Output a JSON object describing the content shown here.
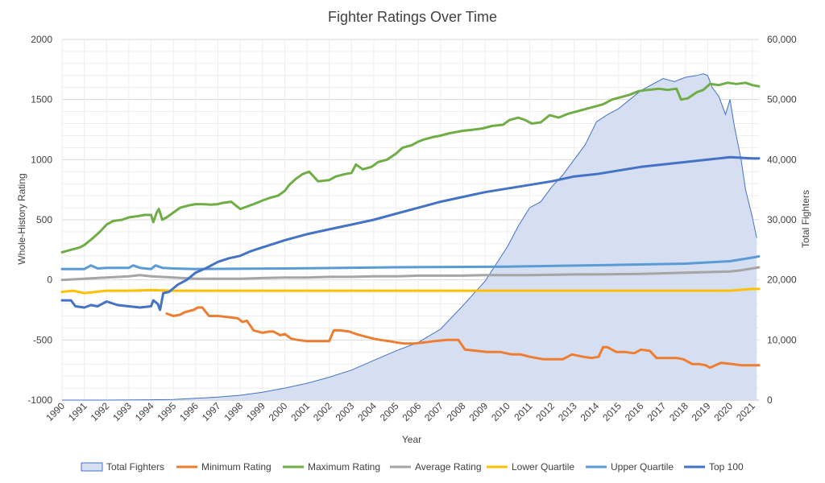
{
  "chart_data": {
    "type": "line",
    "title": "Fighter Ratings Over Time",
    "xlabel": "Year",
    "ylabel": "Whole-History Rating",
    "y2label": "Total Fighters",
    "xlim": [
      1990,
      2021.3
    ],
    "ylim": [
      -1000,
      2000
    ],
    "y2lim": [
      0,
      60000
    ],
    "grid": true,
    "legend_position": "bottom",
    "x_ticks": [
      "1990",
      "1991",
      "1992",
      "1993",
      "1994",
      "1995",
      "1996",
      "1997",
      "1998",
      "1999",
      "2000",
      "2001",
      "2002",
      "2003",
      "2004",
      "2005",
      "2006",
      "2007",
      "2008",
      "2009",
      "2010",
      "2011",
      "2012",
      "2013",
      "2014",
      "2015",
      "2016",
      "2017",
      "2018",
      "2019",
      "2020",
      "2021"
    ],
    "y_ticks": [
      "-1000",
      "-500",
      "0",
      "500",
      "1000",
      "1500",
      "2000"
    ],
    "y2_ticks": [
      "0",
      "10,000",
      "20,000",
      "30,000",
      "40,000",
      "50,000",
      "60,000"
    ],
    "series": [
      {
        "name": "Total Fighters",
        "kind": "area",
        "axis": "right",
        "color": "#4472C4",
        "fill": "#D6DEF1",
        "x": [
          1990,
          1992,
          1994,
          1995,
          1996,
          1997,
          1998,
          1999,
          2000,
          2001,
          2002,
          2003,
          2004,
          2005,
          2006,
          2007,
          2008,
          2009,
          2010,
          2010.5,
          2011,
          2011.5,
          2012,
          2012.5,
          2013,
          2013.5,
          2014,
          2014.5,
          2015,
          2015.5,
          2016,
          2016.5,
          2017,
          2017.5,
          2018,
          2018.5,
          2018.8,
          2019,
          2019.2,
          2019.5,
          2019.8,
          2020,
          2020.2,
          2020.5,
          2020.7,
          2021,
          2021.2
        ],
        "values": [
          0,
          0,
          50,
          100,
          300,
          500,
          800,
          1300,
          2000,
          2800,
          3800,
          5000,
          6600,
          8200,
          9600,
          11800,
          15700,
          19800,
          25500,
          29000,
          32000,
          33000,
          35500,
          37500,
          40000,
          42500,
          46300,
          47500,
          48500,
          50000,
          51500,
          52500,
          53500,
          53000,
          53700,
          54000,
          54300,
          54000,
          52000,
          50500,
          47500,
          50000,
          45500,
          40000,
          35000,
          30500,
          27000
        ]
      },
      {
        "name": "Minimum Rating",
        "kind": "line",
        "axis": "left",
        "color": "#ED7D31",
        "x": [
          1994.7,
          1995,
          1995.3,
          1995.5,
          1995.7,
          1995.9,
          1996.1,
          1996.3,
          1996.6,
          1997,
          1997.5,
          1997.9,
          1998.1,
          1998.3,
          1998.6,
          1999,
          1999.3,
          1999.5,
          1999.8,
          2000,
          2000.3,
          2000.6,
          2001,
          2001.5,
          2002,
          2002.2,
          2002.5,
          2002.9,
          2003.2,
          2003.6,
          2004,
          2004.3,
          2004.7,
          2005,
          2005.4,
          2005.8,
          2006.3,
          2006.7,
          2007.3,
          2007.8,
          2008.1,
          2008.6,
          2009.1,
          2009.7,
          2010.2,
          2010.6,
          2011,
          2011.6,
          2012.2,
          2012.5,
          2012.9,
          2013.4,
          2013.8,
          2014.1,
          2014.3,
          2014.5,
          2014.9,
          2015.3,
          2015.7,
          2016,
          2016.4,
          2016.7,
          2017.3,
          2017.6,
          2017.9,
          2018.3,
          2018.6,
          2018.9,
          2019.1,
          2019.6,
          2020.1,
          2020.5,
          2021,
          2021.3
        ],
        "values": [
          -280,
          -300,
          -290,
          -270,
          -260,
          -250,
          -230,
          -230,
          -300,
          -300,
          -310,
          -320,
          -350,
          -340,
          -420,
          -440,
          -430,
          -430,
          -460,
          -450,
          -490,
          -500,
          -510,
          -510,
          -510,
          -420,
          -420,
          -430,
          -450,
          -470,
          -490,
          -500,
          -510,
          -520,
          -530,
          -530,
          -520,
          -510,
          -500,
          -500,
          -580,
          -590,
          -600,
          -600,
          -620,
          -620,
          -640,
          -660,
          -660,
          -660,
          -620,
          -640,
          -650,
          -640,
          -560,
          -560,
          -600,
          -600,
          -610,
          -580,
          -590,
          -650,
          -650,
          -650,
          -660,
          -700,
          -700,
          -710,
          -730,
          -690,
          -700,
          -710,
          -710,
          -710
        ]
      },
      {
        "name": "Maximum Rating",
        "kind": "line",
        "axis": "left",
        "color": "#70AD47",
        "x": [
          1990,
          1990.4,
          1990.8,
          1991,
          1991.4,
          1991.7,
          1992,
          1992.3,
          1992.7,
          1993,
          1993.4,
          1993.7,
          1994,
          1994.1,
          1994.25,
          1994.35,
          1994.5,
          1994.7,
          1995,
          1995.3,
          1995.7,
          1996,
          1996.3,
          1996.7,
          1997,
          1997.2,
          1997.6,
          1998,
          1998.3,
          1998.6,
          1999,
          1999.3,
          1999.7,
          2000,
          2000.2,
          2000.5,
          2000.8,
          2001.1,
          2001.5,
          2002,
          2002.3,
          2002.7,
          2003,
          2003.2,
          2003.5,
          2003.9,
          2004.2,
          2004.6,
          2005,
          2005.3,
          2005.7,
          2006,
          2006.3,
          2006.7,
          2007,
          2007.4,
          2008,
          2008.5,
          2008.9,
          2009.3,
          2009.8,
          2010.1,
          2010.5,
          2010.8,
          2011.1,
          2011.5,
          2011.9,
          2012.3,
          2012.7,
          2013.1,
          2013.5,
          2013.9,
          2014.3,
          2014.7,
          2015.1,
          2015.5,
          2015.9,
          2016.3,
          2016.8,
          2017.2,
          2017.6,
          2017.8,
          2018.1,
          2018.5,
          2018.8,
          2019.1,
          2019.5,
          2019.9,
          2020.3,
          2020.7,
          2021,
          2021.3
        ],
        "values": [
          230,
          250,
          270,
          290,
          350,
          400,
          460,
          490,
          500,
          520,
          530,
          540,
          540,
          480,
          560,
          590,
          500,
          520,
          560,
          600,
          620,
          630,
          630,
          625,
          630,
          640,
          650,
          590,
          610,
          630,
          660,
          680,
          700,
          740,
          790,
          840,
          880,
          900,
          820,
          830,
          860,
          880,
          890,
          960,
          920,
          940,
          980,
          1000,
          1050,
          1100,
          1120,
          1150,
          1170,
          1190,
          1200,
          1220,
          1240,
          1250,
          1260,
          1280,
          1290,
          1330,
          1350,
          1330,
          1300,
          1310,
          1370,
          1350,
          1380,
          1400,
          1420,
          1440,
          1460,
          1500,
          1520,
          1540,
          1570,
          1580,
          1590,
          1580,
          1590,
          1500,
          1510,
          1560,
          1580,
          1630,
          1620,
          1640,
          1630,
          1640,
          1620,
          1610
        ]
      },
      {
        "name": "Average Rating",
        "kind": "line",
        "axis": "left",
        "color": "#A5A5A5",
        "x": [
          1990,
          1991,
          1992,
          1993,
          1993.5,
          1994,
          1995,
          1996,
          1997,
          1998,
          1999,
          2000,
          2001,
          2002,
          2003,
          2004,
          2005,
          2006,
          2007,
          2008,
          2009,
          2010,
          2011,
          2012,
          2013,
          2014,
          2015,
          2016,
          2017,
          2018,
          2019,
          2020,
          2020.5,
          2021,
          2021.3
        ],
        "values": [
          0,
          10,
          20,
          30,
          40,
          30,
          20,
          10,
          10,
          10,
          15,
          20,
          20,
          25,
          25,
          30,
          30,
          35,
          35,
          35,
          40,
          40,
          40,
          42,
          45,
          45,
          48,
          50,
          55,
          60,
          65,
          70,
          80,
          95,
          105
        ]
      },
      {
        "name": "Lower Quartile",
        "kind": "line",
        "axis": "left",
        "color": "#FFC000",
        "x": [
          1990,
          1990.5,
          1991,
          1991.5,
          1992,
          1993,
          1994,
          1995,
          1996,
          1998,
          2000,
          2005,
          2010,
          2015,
          2020,
          2021,
          2021.3
        ],
        "values": [
          -100,
          -90,
          -110,
          -100,
          -90,
          -90,
          -85,
          -90,
          -90,
          -90,
          -90,
          -90,
          -90,
          -90,
          -90,
          -75,
          -75
        ]
      },
      {
        "name": "Upper Quartile",
        "kind": "line",
        "axis": "left",
        "color": "#5B9BD5",
        "x": [
          1990,
          1991,
          1991.3,
          1991.6,
          1992,
          1993,
          1993.2,
          1993.5,
          1994,
          1994.2,
          1994.5,
          1995,
          1996,
          2000,
          2005,
          2010,
          2015,
          2018,
          2019,
          2020,
          2021,
          2021.3
        ],
        "values": [
          90,
          90,
          120,
          95,
          100,
          100,
          120,
          100,
          90,
          120,
          100,
          95,
          90,
          95,
          105,
          110,
          125,
          135,
          145,
          155,
          185,
          195
        ]
      },
      {
        "name": "Top 100",
        "kind": "line",
        "axis": "left",
        "color": "#4472C4",
        "x": [
          1990,
          1990.4,
          1990.6,
          1991,
          1991.3,
          1991.6,
          1992,
          1992.5,
          1993,
          1993.5,
          1994,
          1994.1,
          1994.3,
          1994.4,
          1994.55,
          1994.8,
          1995.2,
          1995.6,
          1996,
          1996.5,
          1997,
          1997.5,
          1998,
          1998.5,
          1999,
          1999.5,
          2000,
          2001,
          2002,
          2003,
          2004,
          2005,
          2006,
          2007,
          2008,
          2009,
          2010,
          2011,
          2012,
          2013,
          2014,
          2015,
          2016,
          2017,
          2018,
          2019,
          2020,
          2021,
          2021.3
        ],
        "values": [
          -170,
          -170,
          -220,
          -230,
          -210,
          -220,
          -180,
          -210,
          -220,
          -230,
          -220,
          -170,
          -200,
          -250,
          -110,
          -100,
          -40,
          0,
          60,
          100,
          150,
          180,
          200,
          240,
          270,
          300,
          330,
          380,
          420,
          460,
          500,
          550,
          600,
          650,
          690,
          730,
          760,
          790,
          820,
          860,
          880,
          910,
          940,
          960,
          980,
          1000,
          1020,
          1010,
          1010
        ]
      }
    ]
  }
}
